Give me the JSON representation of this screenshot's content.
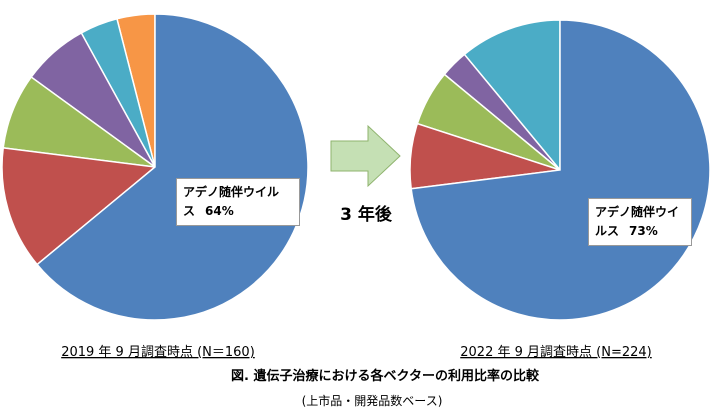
{
  "chart_data": [
    {
      "type": "pie",
      "title": "2019 年 9 月調査時点 (N＝160)",
      "categories": [
        "アデノ随伴ウイルス",
        null,
        null,
        null,
        null,
        null
      ],
      "values": [
        64,
        13,
        8,
        7,
        4,
        4
      ],
      "value_labels": [
        "64%",
        null,
        null,
        null,
        null,
        null
      ],
      "colors": [
        "#4f81bd",
        "#c0504d",
        "#9bbb59",
        "#8064a2",
        "#4bacc6",
        "#f79646"
      ]
    },
    {
      "type": "pie",
      "title": "2022 年 9 月調査時点 (N=224)",
      "categories": [
        "アデノ随伴ウイルス",
        null,
        null,
        null,
        null
      ],
      "values": [
        73,
        7,
        6,
        3,
        11
      ],
      "value_labels": [
        "73%",
        null,
        null,
        null,
        null
      ],
      "colors": [
        "#4f81bd",
        "#c0504d",
        "#9bbb59",
        "#8064a2",
        "#4bacc6"
      ]
    }
  ],
  "figure": {
    "arrow_label": "3 年後",
    "caption": "図. 遺伝子治療における各ベクターの利用比率の比較",
    "note": "(上市品・開発品数ベース)"
  }
}
